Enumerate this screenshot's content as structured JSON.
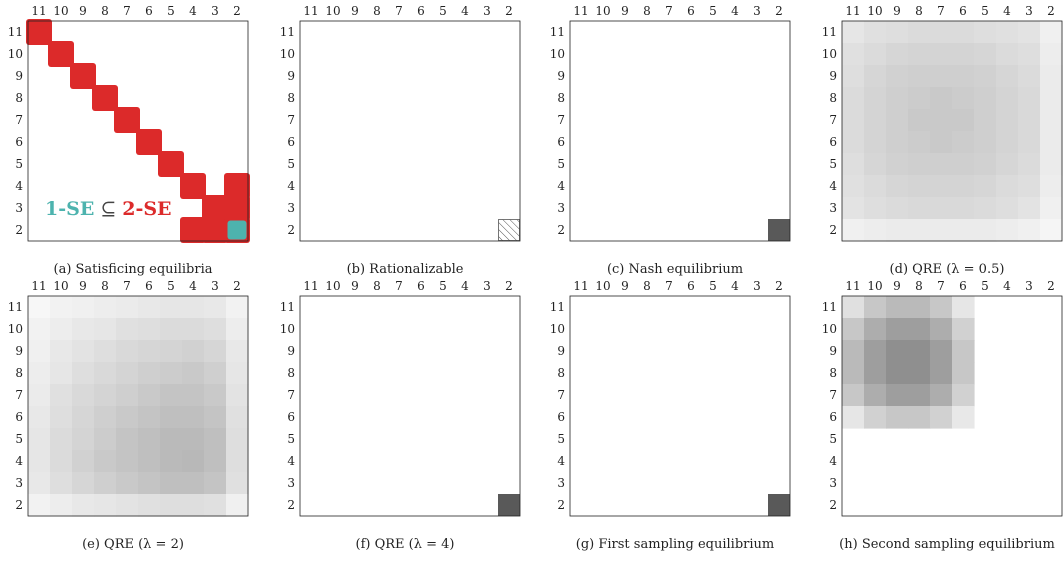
{
  "ticks": [
    "11",
    "10",
    "9",
    "8",
    "7",
    "6",
    "5",
    "4",
    "3",
    "2"
  ],
  "colors": {
    "red": "#dc2a2a",
    "teal": "#4db3ae",
    "dark": "#595959",
    "hatch": "#555555",
    "frame": "#222222",
    "legend_gray": "#444444"
  },
  "legend": {
    "part1": "1-SE",
    "part2": "⊆",
    "part3": "2-SE"
  },
  "panels": [
    {
      "id": "a",
      "kind": "se",
      "caption": "(a) Satisficing equilibria"
    },
    {
      "id": "b",
      "kind": "hatch",
      "caption": "(b) Rationalizable"
    },
    {
      "id": "c",
      "kind": "point",
      "caption": "(c) Nash equilibrium"
    },
    {
      "id": "d",
      "kind": "heat",
      "caption": "(d) QRE (λ = 0.5)",
      "cells": [
        [
          0.1,
          0.12,
          0.13,
          0.14,
          0.14,
          0.14,
          0.13,
          0.12,
          0.11,
          0.06
        ],
        [
          0.12,
          0.14,
          0.16,
          0.17,
          0.17,
          0.17,
          0.16,
          0.14,
          0.13,
          0.07
        ],
        [
          0.13,
          0.16,
          0.18,
          0.19,
          0.19,
          0.19,
          0.18,
          0.16,
          0.14,
          0.08
        ],
        [
          0.14,
          0.17,
          0.19,
          0.2,
          0.21,
          0.2,
          0.19,
          0.17,
          0.15,
          0.08
        ],
        [
          0.14,
          0.17,
          0.19,
          0.21,
          0.21,
          0.21,
          0.19,
          0.17,
          0.15,
          0.08
        ],
        [
          0.14,
          0.17,
          0.19,
          0.2,
          0.21,
          0.2,
          0.19,
          0.17,
          0.15,
          0.08
        ],
        [
          0.13,
          0.16,
          0.18,
          0.19,
          0.19,
          0.19,
          0.18,
          0.16,
          0.14,
          0.08
        ],
        [
          0.12,
          0.14,
          0.16,
          0.17,
          0.17,
          0.17,
          0.16,
          0.14,
          0.13,
          0.07
        ],
        [
          0.11,
          0.13,
          0.14,
          0.15,
          0.15,
          0.15,
          0.14,
          0.13,
          0.11,
          0.06
        ],
        [
          0.06,
          0.07,
          0.08,
          0.08,
          0.08,
          0.08,
          0.08,
          0.07,
          0.06,
          0.04
        ]
      ]
    },
    {
      "id": "e",
      "kind": "heat",
      "caption": "(e) QRE (λ = 2)",
      "cells": [
        [
          0.03,
          0.05,
          0.06,
          0.07,
          0.08,
          0.09,
          0.1,
          0.1,
          0.09,
          0.05
        ],
        [
          0.05,
          0.07,
          0.09,
          0.1,
          0.12,
          0.13,
          0.14,
          0.14,
          0.13,
          0.07
        ],
        [
          0.06,
          0.09,
          0.11,
          0.13,
          0.15,
          0.16,
          0.17,
          0.18,
          0.16,
          0.09
        ],
        [
          0.07,
          0.1,
          0.13,
          0.15,
          0.17,
          0.19,
          0.2,
          0.21,
          0.19,
          0.1
        ],
        [
          0.08,
          0.12,
          0.15,
          0.17,
          0.19,
          0.21,
          0.23,
          0.23,
          0.21,
          0.11
        ],
        [
          0.09,
          0.13,
          0.16,
          0.19,
          0.21,
          0.23,
          0.25,
          0.25,
          0.23,
          0.12
        ],
        [
          0.1,
          0.14,
          0.17,
          0.2,
          0.23,
          0.25,
          0.27,
          0.27,
          0.25,
          0.13
        ],
        [
          0.1,
          0.14,
          0.18,
          0.21,
          0.23,
          0.25,
          0.27,
          0.28,
          0.25,
          0.13
        ],
        [
          0.09,
          0.13,
          0.16,
          0.19,
          0.21,
          0.23,
          0.25,
          0.25,
          0.23,
          0.12
        ],
        [
          0.05,
          0.07,
          0.09,
          0.1,
          0.11,
          0.12,
          0.13,
          0.13,
          0.12,
          0.06
        ]
      ]
    },
    {
      "id": "f",
      "kind": "point",
      "caption": "(f) QRE (λ = 4)"
    },
    {
      "id": "g",
      "kind": "point",
      "caption": "(g) First sampling equilibrium"
    },
    {
      "id": "h",
      "kind": "heat",
      "caption": "(h) Second sampling equilibrium",
      "cells": [
        [
          0.12,
          0.22,
          0.27,
          0.27,
          0.22,
          0.1,
          0,
          0,
          0,
          0
        ],
        [
          0.22,
          0.32,
          0.38,
          0.38,
          0.32,
          0.18,
          0,
          0,
          0,
          0
        ],
        [
          0.27,
          0.38,
          0.44,
          0.44,
          0.38,
          0.22,
          0,
          0,
          0,
          0
        ],
        [
          0.27,
          0.38,
          0.44,
          0.44,
          0.38,
          0.22,
          0,
          0,
          0,
          0
        ],
        [
          0.22,
          0.32,
          0.38,
          0.38,
          0.32,
          0.18,
          0,
          0,
          0,
          0
        ],
        [
          0.1,
          0.18,
          0.22,
          0.22,
          0.18,
          0.09,
          0,
          0,
          0,
          0
        ],
        [
          0,
          0,
          0,
          0,
          0,
          0,
          0,
          0,
          0,
          0
        ],
        [
          0,
          0,
          0,
          0,
          0,
          0,
          0,
          0,
          0,
          0
        ],
        [
          0,
          0,
          0,
          0,
          0,
          0,
          0,
          0,
          0,
          0
        ],
        [
          0,
          0,
          0,
          0,
          0,
          0,
          0,
          0,
          0,
          0
        ]
      ]
    }
  ]
}
